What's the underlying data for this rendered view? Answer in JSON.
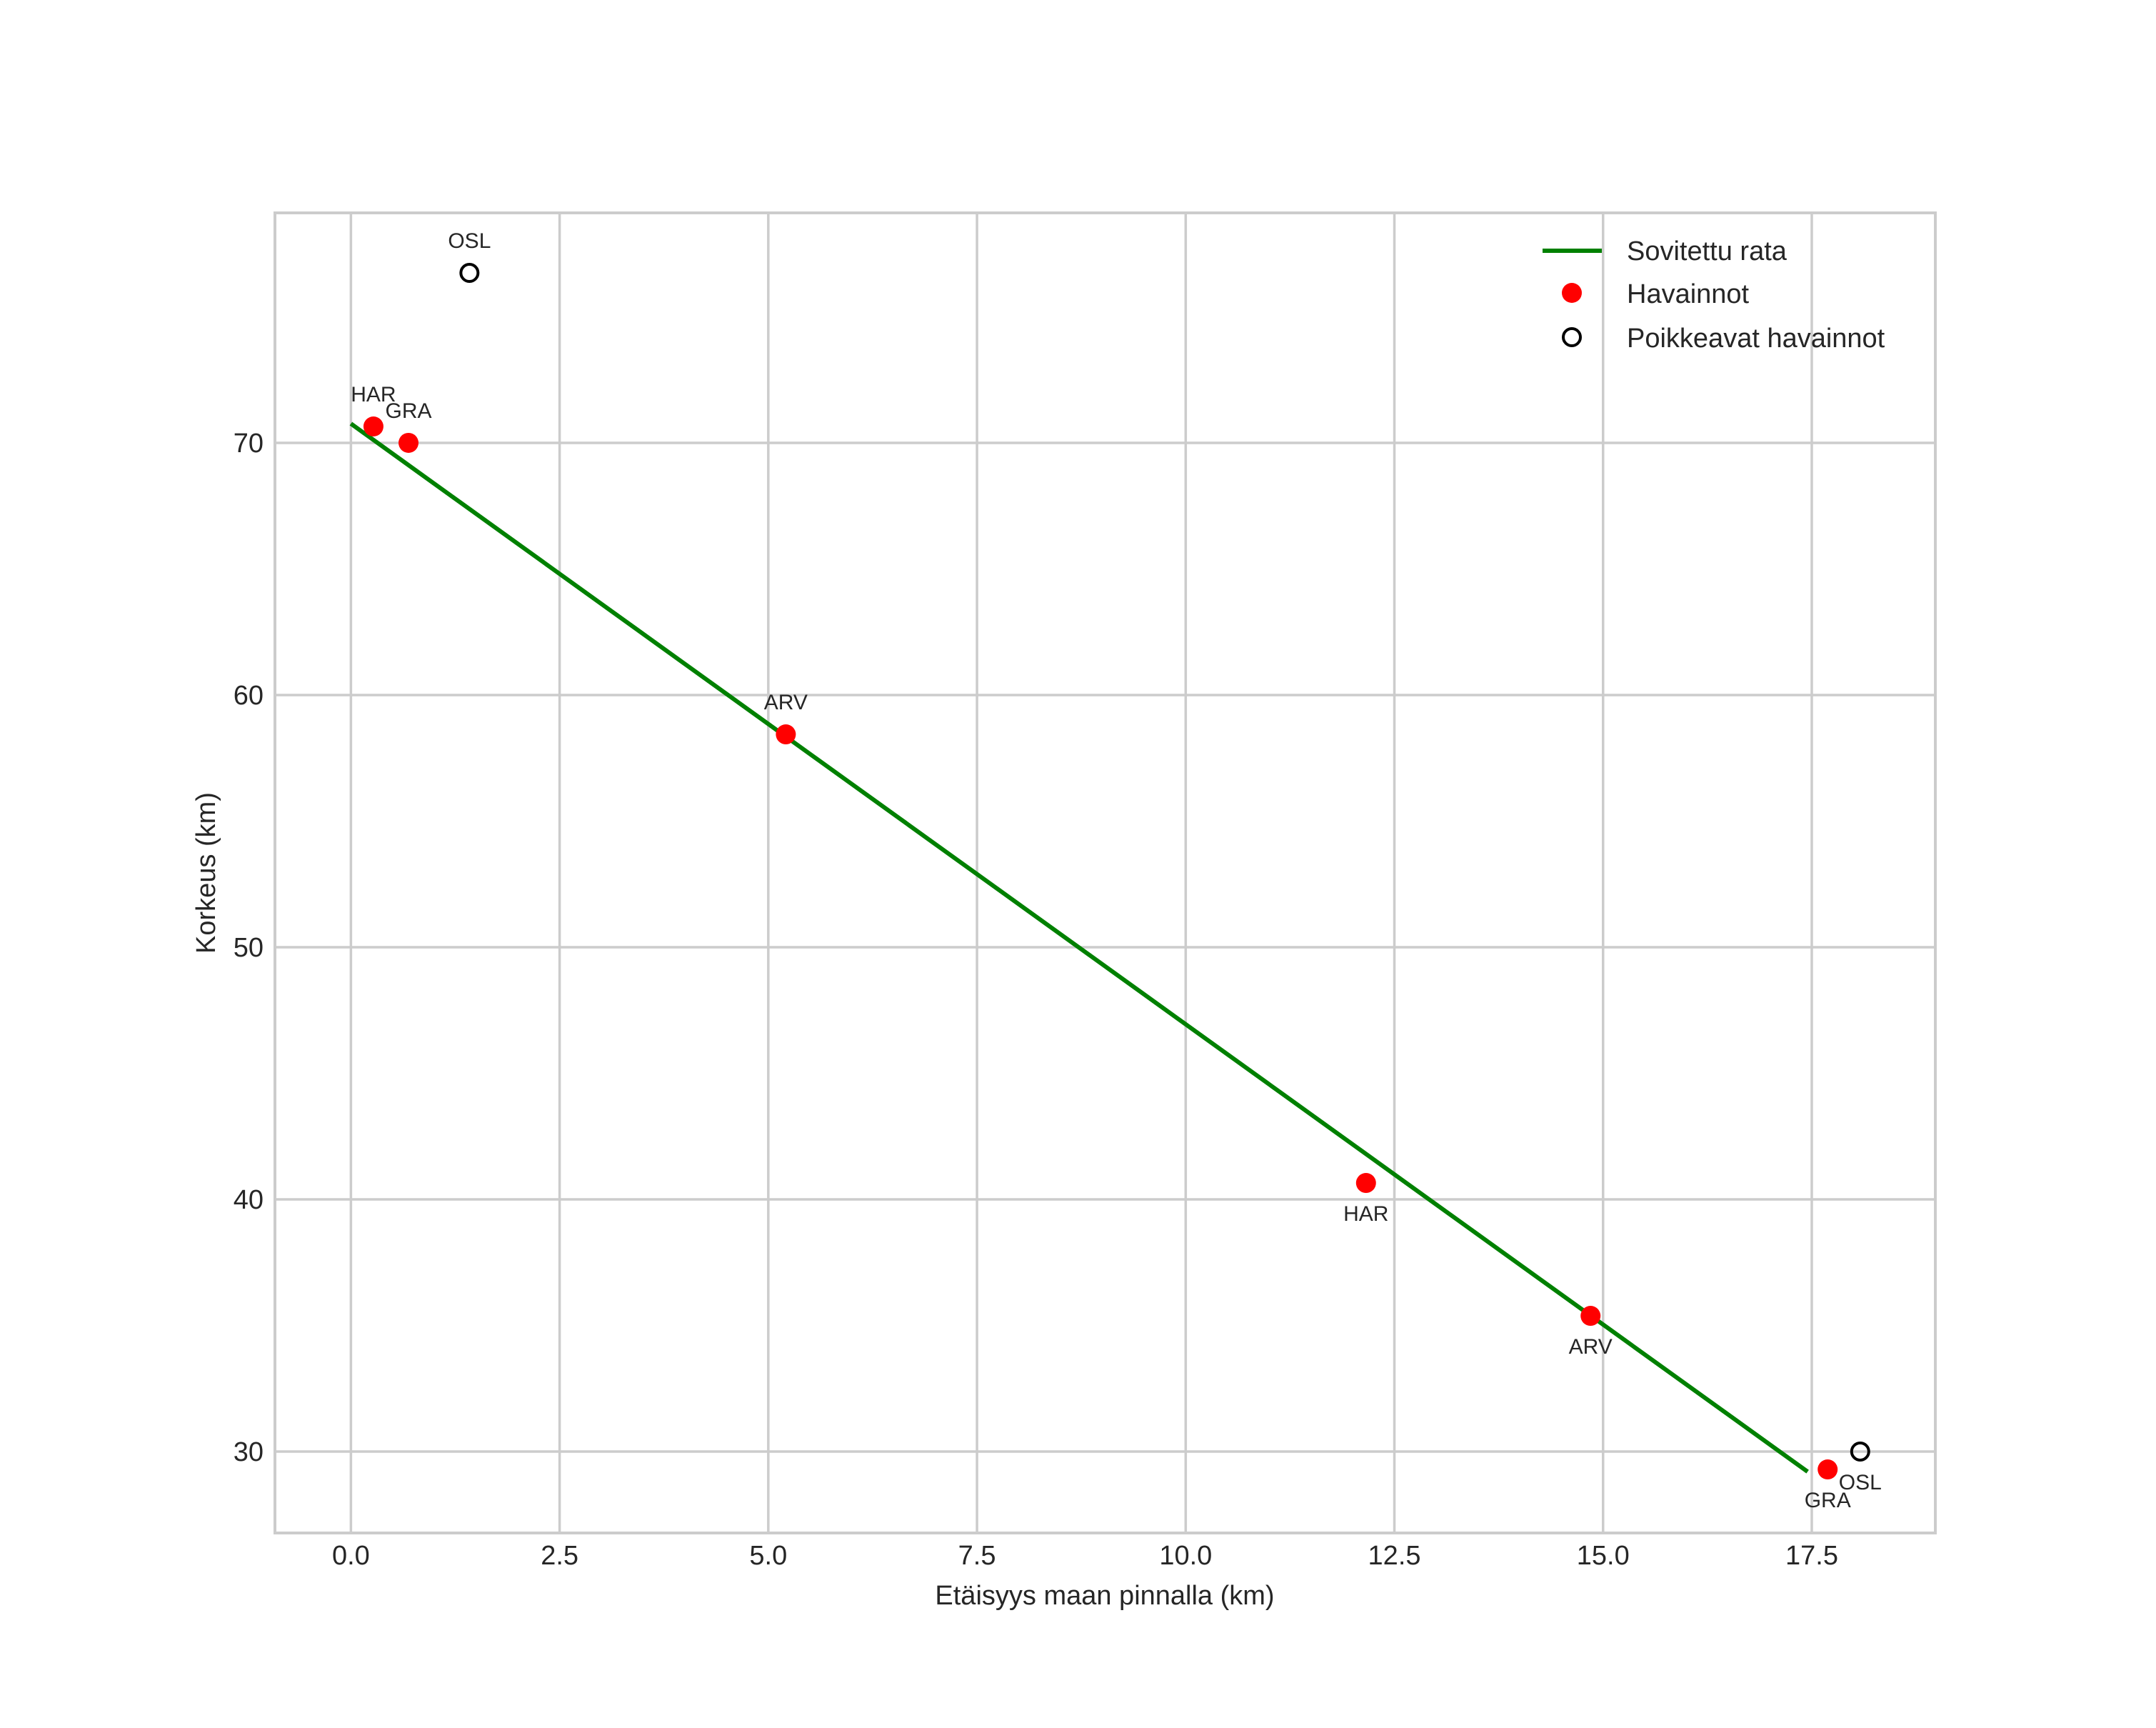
{
  "chart_data": {
    "type": "scatter",
    "title": "",
    "xlabel": "Etäisyys maan pinnalla (km)",
    "ylabel": "Korkeus (km)",
    "xlim": [
      -0.91,
      18.98
    ],
    "ylim": [
      26.77,
      79.12
    ],
    "grid": true,
    "legend_position": "upper right",
    "x_ticks": [
      0.0,
      2.5,
      5.0,
      7.5,
      10.0,
      12.5,
      15.0,
      17.5
    ],
    "x_tick_labels": [
      "0.0",
      "2.5",
      "5.0",
      "7.5",
      "10.0",
      "12.5",
      "15.0",
      "17.5"
    ],
    "y_ticks": [
      30,
      40,
      50,
      60,
      70
    ],
    "y_tick_labels": [
      "30",
      "40",
      "50",
      "60",
      "70"
    ],
    "series": [
      {
        "name": "Sovitettu rata",
        "kind": "line",
        "color": "#008000",
        "x": [
          0.0,
          17.45
        ],
        "y": [
          70.76,
          29.2
        ]
      },
      {
        "name": "Havainnot",
        "kind": "scatter",
        "color": "#ff0000",
        "marker": "filled-circle",
        "points": [
          {
            "label": "HAR",
            "x": 0.27,
            "y": 70.65,
            "label_pos": "above"
          },
          {
            "label": "GRA",
            "x": 0.69,
            "y": 70.0,
            "label_pos": "above"
          },
          {
            "label": "ARV",
            "x": 5.21,
            "y": 58.44,
            "label_pos": "above"
          },
          {
            "label": "HAR",
            "x": 12.16,
            "y": 40.65,
            "label_pos": "below"
          },
          {
            "label": "ARV",
            "x": 14.85,
            "y": 35.38,
            "label_pos": "below"
          },
          {
            "label": "GRA",
            "x": 17.69,
            "y": 29.29,
            "label_pos": "below"
          }
        ]
      },
      {
        "name": "Poikkeavat havainnot",
        "kind": "scatter",
        "color": "#000000",
        "marker": "hollow-circle",
        "points": [
          {
            "label": "OSL",
            "x": 1.42,
            "y": 76.74,
            "label_pos": "above"
          },
          {
            "label": "OSL",
            "x": 18.08,
            "y": 30.0,
            "label_pos": "below"
          }
        ]
      }
    ]
  },
  "legend": {
    "items": [
      {
        "label": "Sovitettu rata",
        "icon": "green-line"
      },
      {
        "label": "Havainnot",
        "icon": "red-dot"
      },
      {
        "label": "Poikkeavat havainnot",
        "icon": "hollow-circle"
      }
    ]
  },
  "colors": {
    "fit_line": "#008000",
    "observations": "#ff0000",
    "outliers": "#000000",
    "grid": "#cccccc",
    "text": "#262626"
  }
}
